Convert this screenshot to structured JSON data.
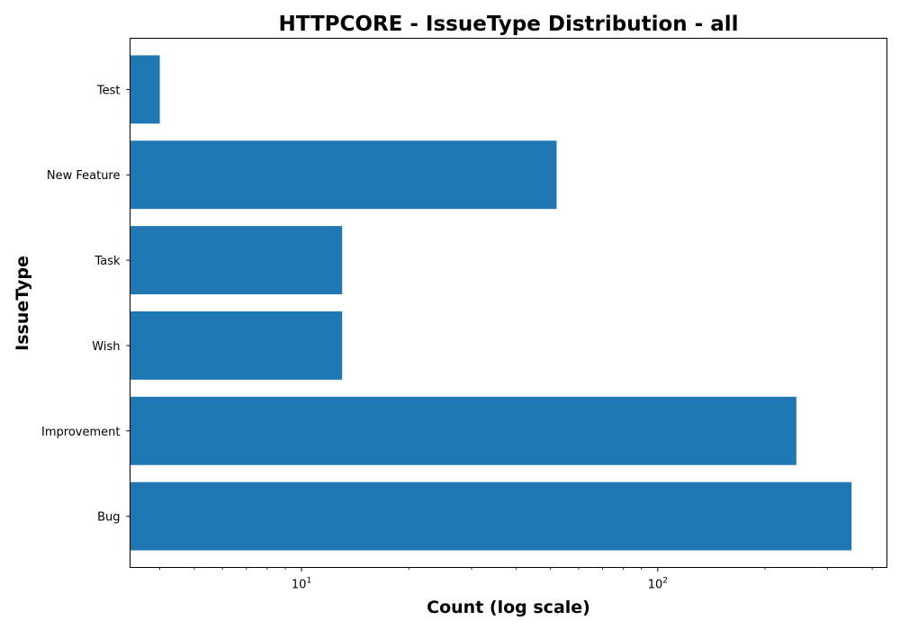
{
  "chart_data": {
    "type": "bar",
    "orientation": "horizontal",
    "title": "HTTPCORE - IssueType Distribution - all",
    "xlabel": "Count (log scale)",
    "ylabel": "IssueType",
    "x_scale": "log",
    "xlim": [
      3.3,
      440
    ],
    "categories": [
      "Bug",
      "Improvement",
      "Wish",
      "Task",
      "New Feature",
      "Test"
    ],
    "values": [
      350,
      245,
      13,
      13,
      52,
      4
    ],
    "color": "#1f77b4",
    "grid": false,
    "x_major_ticks": [
      {
        "value": 10,
        "base": "10",
        "exponent": "1"
      },
      {
        "value": 100,
        "base": "10",
        "exponent": "2"
      }
    ]
  }
}
